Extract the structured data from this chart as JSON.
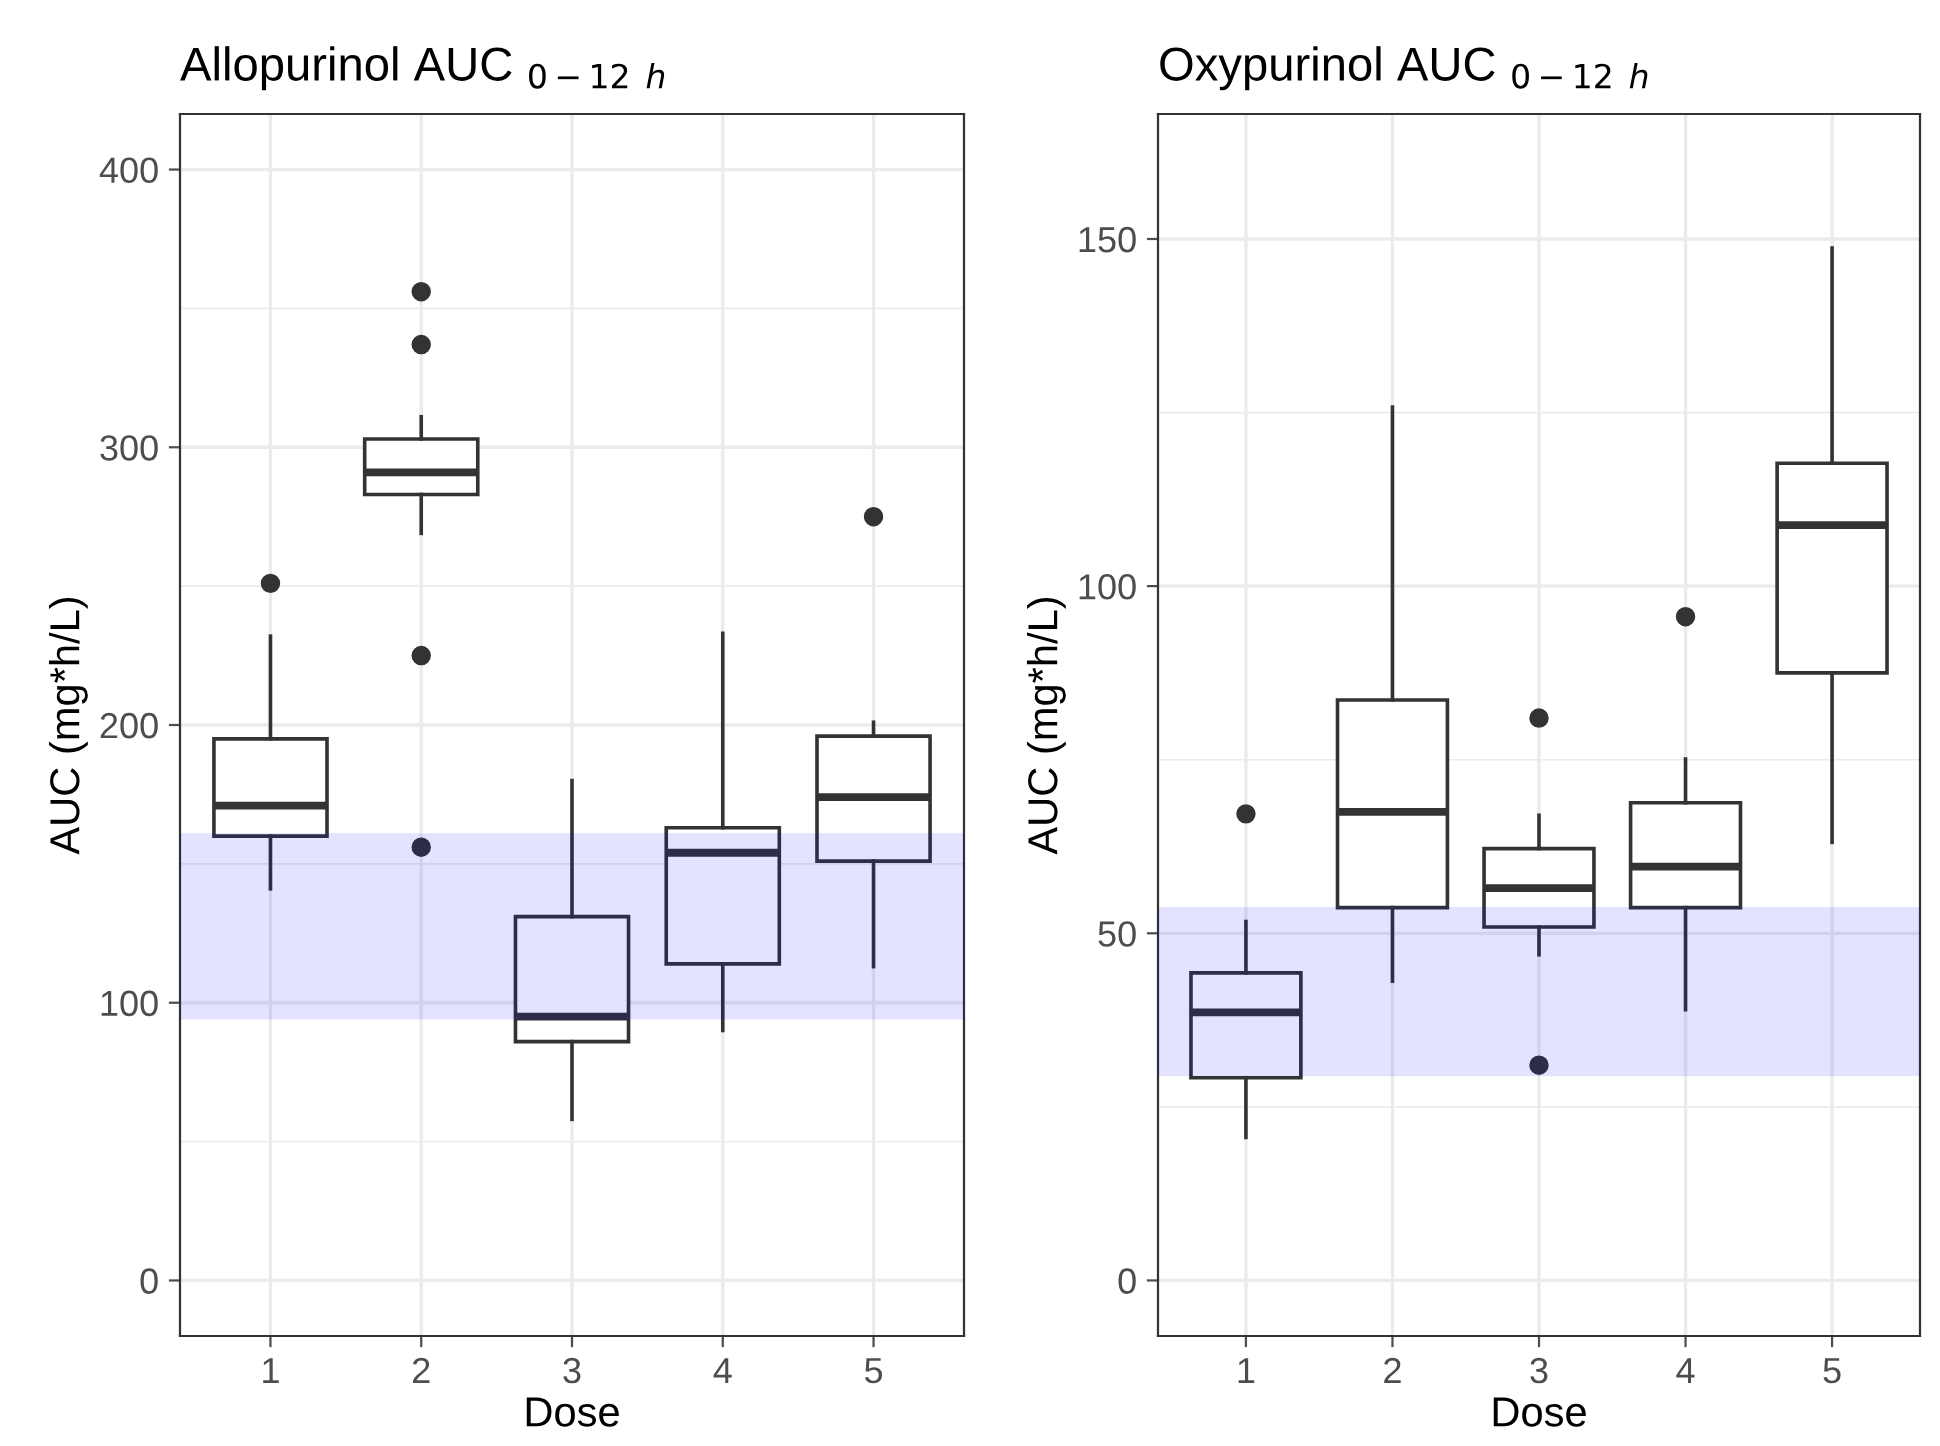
{
  "chart_data": [
    {
      "type": "box",
      "title": "Allopurinol AUC $_{0−12}$ $_{h}$",
      "xlabel": "Dose",
      "ylabel": "AUC (mg*h/L)",
      "categories": [
        "1",
        "2",
        "3",
        "4",
        "5"
      ],
      "ylim": [
        -20,
        420
      ],
      "yticks": [
        0,
        100,
        200,
        300,
        400
      ],
      "grid": true,
      "color": "#333333",
      "boxes": [
        {
          "low": 141,
          "q1": 160,
          "median": 171,
          "q3": 195,
          "high": 232,
          "outliers": [
            251
          ]
        },
        {
          "low": 269,
          "q1": 283,
          "median": 291,
          "q3": 303,
          "high": 311,
          "outliers": [
            356,
            337,
            225,
            156
          ]
        },
        {
          "low": 58,
          "q1": 86,
          "median": 95,
          "q3": 131,
          "high": 180
        },
        {
          "low": 90,
          "q1": 114,
          "median": 154,
          "q3": 163,
          "high": 233
        },
        {
          "low": 113,
          "q1": 151,
          "median": 174,
          "q3": 196,
          "high": 201,
          "outliers": [
            275
          ]
        }
      ],
      "bands": [
        {
          "axis": "y",
          "from": 94,
          "to": 161,
          "color": "#0000ff"
        }
      ]
    },
    {
      "type": "box",
      "title": "Oxypurinol AUC $_{0−12}$ $_{h}$",
      "xlabel": "Dose",
      "ylabel": "AUC (mg*h/L)",
      "categories": [
        "1",
        "2",
        "3",
        "4",
        "5"
      ],
      "ylim": [
        -8,
        168
      ],
      "yticks": [
        0,
        50,
        100,
        150
      ],
      "grid": true,
      "color": "#333333",
      "boxes": [
        {
          "low": 20.6,
          "q1": 29.2,
          "median": 38.6,
          "q3": 44.3,
          "high": 51.7,
          "outliers": [
            67.2
          ]
        },
        {
          "low": 43.1,
          "q1": 53.7,
          "median": 67.5,
          "q3": 83.6,
          "high": 125.8
        },
        {
          "low": 46.9,
          "q1": 50.9,
          "median": 56.5,
          "q3": 62.2,
          "high": 67.0,
          "outliers": [
            81.0,
            31.0
          ]
        },
        {
          "low": 39.0,
          "q1": 53.7,
          "median": 59.6,
          "q3": 68.8,
          "high": 75.1,
          "outliers": [
            95.6
          ]
        },
        {
          "low": 63.1,
          "q1": 87.5,
          "median": 108.8,
          "q3": 117.7,
          "high": 148.7
        }
      ],
      "bands": [
        {
          "axis": "y",
          "from": 29.4,
          "to": 53.8,
          "color": "#0000ff"
        }
      ]
    }
  ]
}
